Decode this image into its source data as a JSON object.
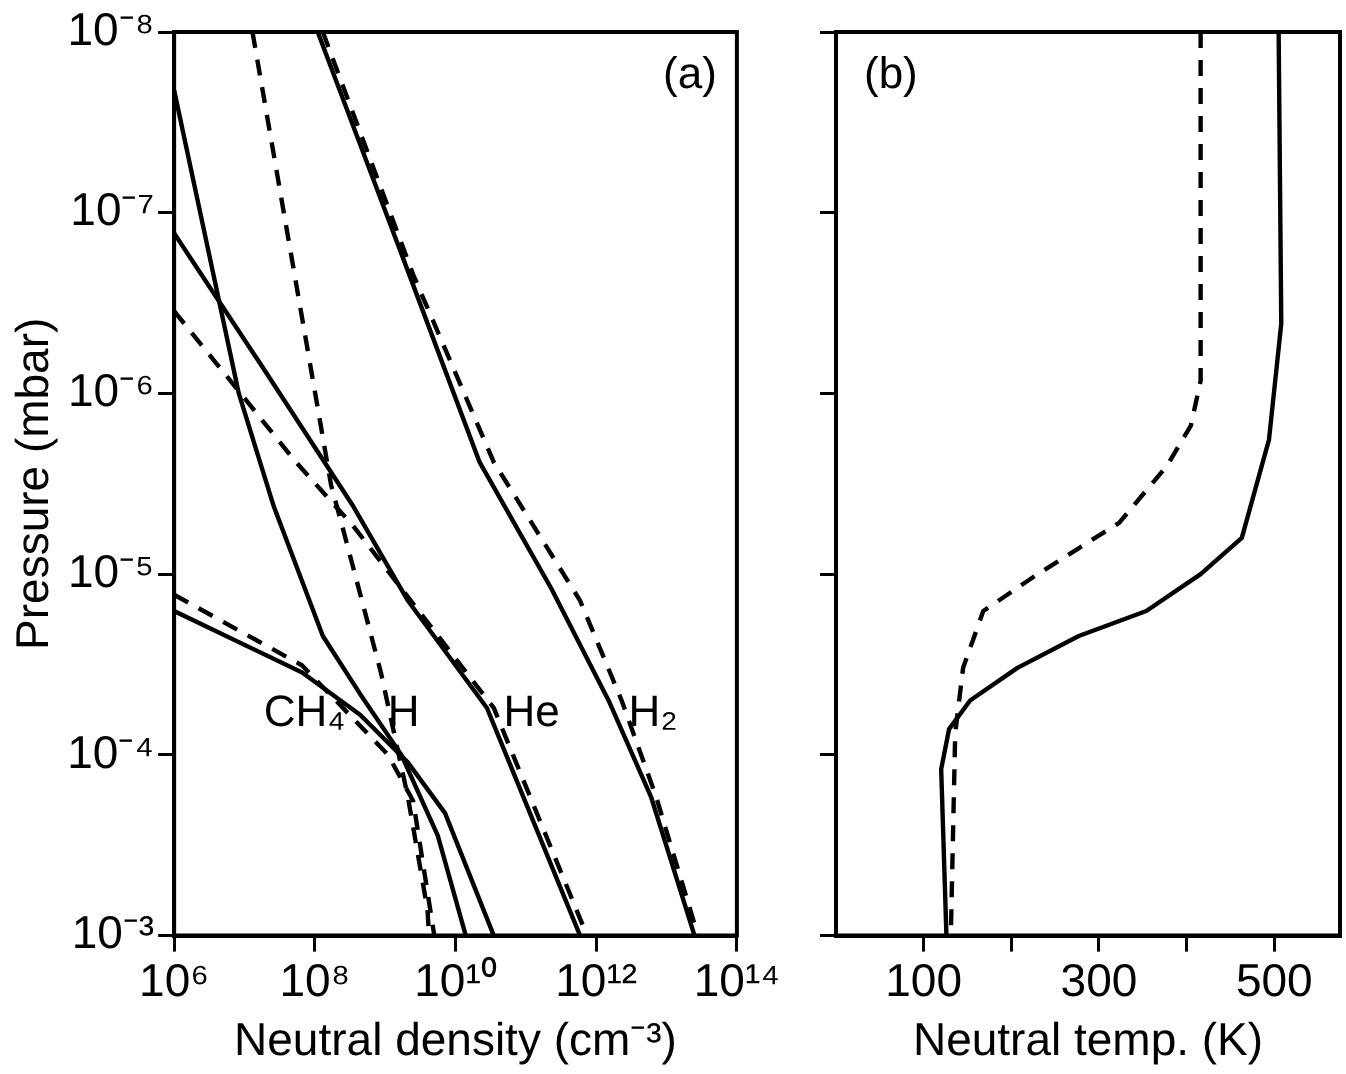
{
  "chart_data": [
    {
      "type": "line",
      "xlabel": "Neutral density (cm⁻³)",
      "ylabel": "Pressure (mbar)",
      "log": "xy",
      "grid": false,
      "legend": false,
      "marker": "none",
      "xlim": [
        1000000.0,
        100000000000000.0
      ],
      "xticks": [
        {
          "value": 1000000.0,
          "label": "10⁶"
        },
        {
          "value": 100000000.0,
          "label": "10⁸"
        },
        {
          "value": 10000000000.0,
          "label": "10¹⁰"
        },
        {
          "value": 1000000000000.0,
          "label": "10¹²"
        },
        {
          "value": 100000000000000.0,
          "label": "10¹⁴"
        }
      ],
      "ylim": [
        0.001,
        1e-08
      ],
      "yticks": [
        {
          "value": 0.001,
          "label": "10⁻³"
        },
        {
          "value": 0.0001,
          "label": "10⁻⁴"
        },
        {
          "value": 1e-05,
          "label": "10⁻⁵"
        },
        {
          "value": 1e-06,
          "label": "10⁻⁶"
        },
        {
          "value": 1e-07,
          "label": "10⁻⁷"
        },
        {
          "value": 1e-08,
          "label": "10⁻⁸"
        }
      ],
      "series": [
        {
          "name": "H₂",
          "color": "#000000",
          "line_style": "solid",
          "x": [
            110000000.0,
            2200000000.0,
            22000000000.0,
            230000000000.0,
            1500000000000.0,
            6000000000000.0,
            25000000000000.0
          ],
          "values": [
            1e-08,
            2.2e-07,
            2.4e-06,
            1.2e-05,
            5e-05,
            0.00017,
            0.001
          ]
        },
        {
          "color": "#000000",
          "line_style": "dashed",
          "x": [
            130000000.0,
            2500000000.0,
            35000000000.0,
            590000000000.0,
            2300000000000.0,
            7100000000000.0,
            28000000000000.0
          ],
          "values": [
            1e-08,
            2.2e-07,
            2.4e-06,
            1.4e-05,
            5e-05,
            0.00017,
            0.001
          ]
        },
        {
          "name": "He",
          "color": "#000000",
          "line_style": "solid",
          "x": [
            1000000.0,
            17000000.0,
            350000000.0,
            2100000000.0,
            28000000000.0,
            590000000000.0
          ],
          "values": [
            1.3e-07,
            6.9e-07,
            4.2e-06,
            1.4e-05,
            5.5e-05,
            0.001
          ]
        },
        {
          "color": "#000000",
          "line_style": "dashed",
          "x": [
            1000000.0,
            54000000.0,
            350000000.0,
            1700000000.0,
            35000000000.0,
            740000000000.0
          ],
          "values": [
            3.5e-07,
            2.4e-06,
            5.4e-06,
            1.2e-05,
            5.5e-05,
            0.001
          ]
        },
        {
          "name": "H",
          "color": "#000000",
          "line_style": "solid",
          "x": [
            1000000.0,
            8300000.0,
            26000000.0,
            130000000.0,
            440000000.0,
            1700000000.0,
            5600000000.0,
            14000000000.0
          ],
          "values": [
            2.1e-08,
            1e-06,
            4.2e-06,
            2.2e-05,
            4.6e-05,
            0.0001,
            0.00028,
            0.001
          ]
        },
        {
          "color": "#000000",
          "line_style": "dashed",
          "x": [
            13000000.0,
            170000000.0,
            260000000.0,
            870000000.0,
            2100000000.0,
            4000000000.0,
            4200000000.0
          ],
          "values": [
            1e-08,
            3.2e-06,
            5.9e-06,
            3.5e-05,
            0.00017,
            0.00072,
            0.001
          ]
        },
        {
          "name": "CH₄",
          "color": "#000000",
          "line_style": "solid",
          "x": [
            1000000.0,
            66000000.0,
            440000000.0,
            2100000000.0,
            7100000000.0,
            35000000000.0
          ],
          "values": [
            1.6e-05,
            3.5e-05,
            6e-05,
            0.00011,
            0.00021,
            0.001
          ]
        },
        {
          "color": "#000000",
          "line_style": "dashed",
          "x": [
            1000000.0,
            66000000.0,
            1100000000.0,
            2500000000.0,
            5000000000.0
          ],
          "values": [
            1.3e-05,
            3.2e-05,
            0.0001,
            0.00018,
            0.001
          ]
        }
      ],
      "annotations": [
        "(a)"
      ]
    },
    {
      "type": "line",
      "xlabel": "Neutral temp. (K)",
      "log": "y",
      "grid": false,
      "legend": false,
      "marker": "none",
      "tick_labels": "x",
      "xlim": [
        0,
        575
      ],
      "xticks": [
        100,
        {
          "value": 200,
          "label": null
        },
        300,
        {
          "value": 400,
          "label": null
        },
        500
      ],
      "ylim": [
        0.001,
        1e-08
      ],
      "yticks": [
        {
          "value": 0.001,
          "label": null
        },
        {
          "value": 0.0001,
          "label": null
        },
        {
          "value": 1e-05,
          "label": null
        },
        {
          "value": 1e-06,
          "label": null
        },
        {
          "value": 1e-07,
          "label": null
        },
        {
          "value": 1e-08,
          "label": null
        }
      ],
      "series": [
        {
          "color": "#000000",
          "line_style": "solid",
          "x": [
            505,
            508,
            494,
            463,
            416,
            354,
            277,
            207,
            153,
            129,
            120,
            126
          ],
          "values": [
            1e-08,
            4.1e-07,
            1.8e-06,
            6.3e-06,
            1e-05,
            1.6e-05,
            2.2e-05,
            3.3e-05,
            5e-05,
            7.2e-05,
            0.00012,
            0.001
          ]
        },
        {
          "color": "#000000",
          "line_style": "dashed",
          "x": [
            416,
            416,
            405,
            378,
            323,
            230,
            168,
            145,
            136,
            131
          ],
          "values": [
            1e-08,
            8.5e-07,
            1.5e-06,
            2.5e-06,
            5.2e-06,
            1e-05,
            1.6e-05,
            3.3e-05,
            7.6e-05,
            0.001
          ]
        }
      ],
      "annotations": [
        "(b)"
      ]
    }
  ]
}
